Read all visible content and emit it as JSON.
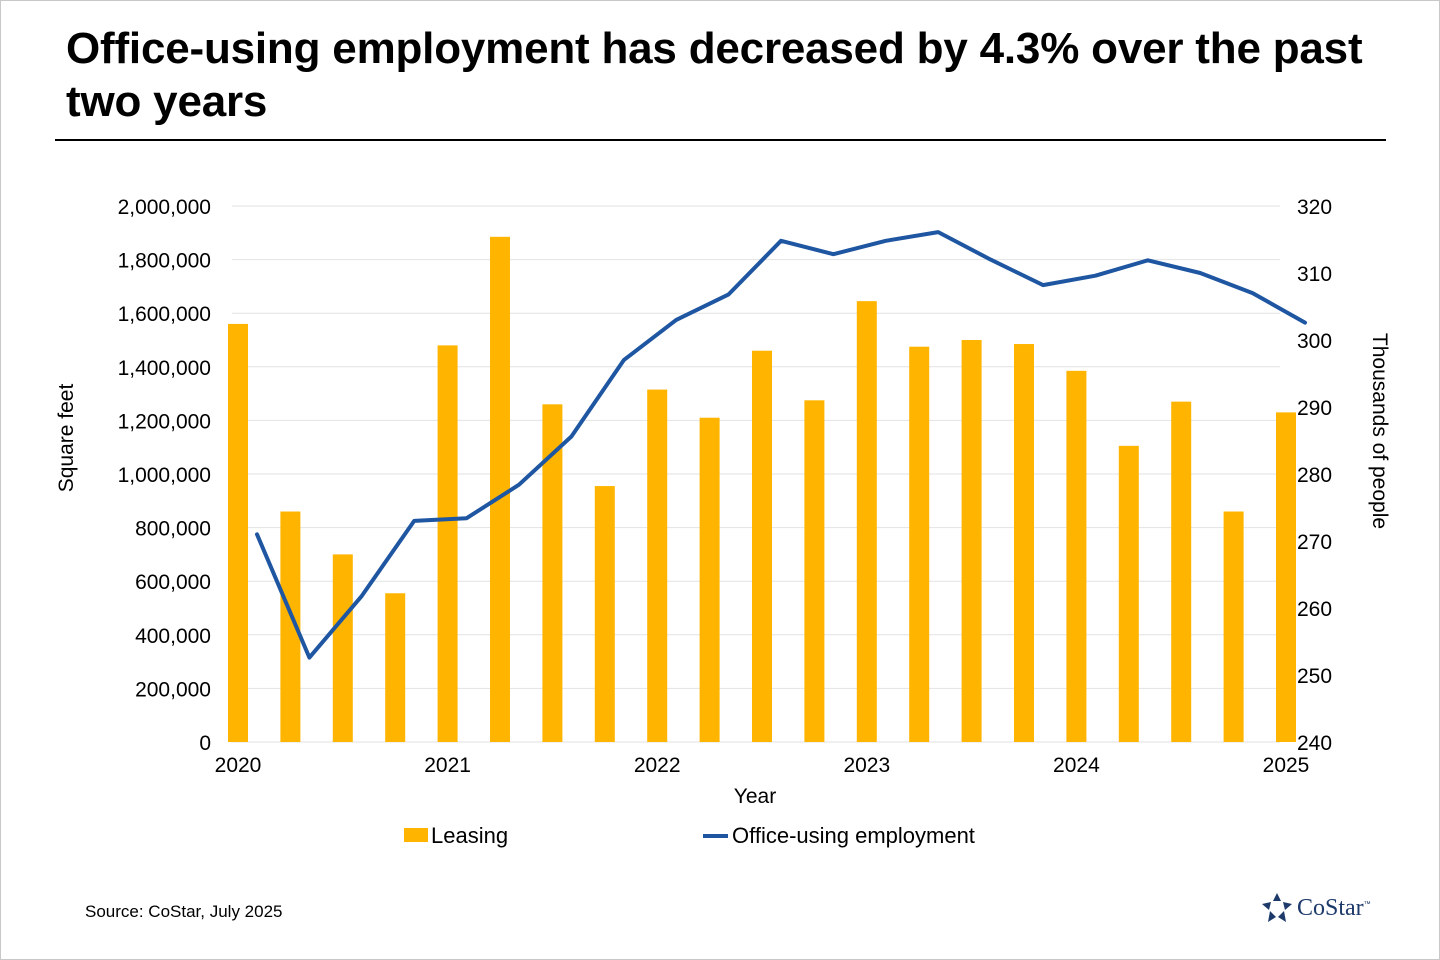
{
  "title": "Office-using employment has decreased by 4.3% over the past two years",
  "source": "Source: CoStar, July 2025",
  "logo": {
    "name": "CoStar",
    "tm": "™",
    "icon": "costar-star-icon"
  },
  "colors": {
    "bar": "#FFB500",
    "line": "#1F56A1",
    "grid": "#E2E2E2",
    "logo": "#1D3A6B"
  },
  "chart_data": {
    "type": "bar",
    "title": "Office-using employment has decreased by 4.3% over the past two years",
    "xlabel": "Year",
    "ylabel": "Square feet",
    "y2label": "Thousands of people",
    "x_ticks": [
      "2020",
      "2021",
      "2022",
      "2023",
      "2024",
      "2025"
    ],
    "ylim": [
      0,
      2000000
    ],
    "y_ticks": [
      "0",
      "200,000",
      "400,000",
      "600,000",
      "800,000",
      "1,000,000",
      "1,200,000",
      "1,400,000",
      "1,600,000",
      "1,800,000",
      "2,000,000"
    ],
    "y2lim": [
      240,
      320
    ],
    "y2_ticks": [
      "240",
      "250",
      "260",
      "270",
      "280",
      "290",
      "300",
      "310",
      "320"
    ],
    "grid": true,
    "legend": "bottom-center",
    "categories": [
      "2020 Q1",
      "2020 Q2",
      "2020 Q3",
      "2020 Q4",
      "2021 Q1",
      "2021 Q2",
      "2021 Q3",
      "2021 Q4",
      "2022 Q1",
      "2022 Q2",
      "2022 Q3",
      "2022 Q4",
      "2023 Q1",
      "2023 Q2",
      "2023 Q3",
      "2023 Q4",
      "2024 Q1",
      "2024 Q2",
      "2024 Q3",
      "2024 Q4",
      "2025 Q1"
    ],
    "series": [
      {
        "name": "Leasing",
        "type": "bar",
        "axis": "left",
        "values": [
          1560000,
          860000,
          700000,
          555000,
          1480000,
          1885000,
          1260000,
          955000,
          1315000,
          1210000,
          1460000,
          1275000,
          1645000,
          1475000,
          1500000,
          1485000,
          1385000,
          1105000,
          1270000,
          860000,
          1230000
        ]
      },
      {
        "name": "Office-using employment",
        "type": "line",
        "axis": "right",
        "values": [
          271.0,
          252.6,
          261.8,
          273.0,
          273.4,
          278.4,
          285.6,
          297.0,
          303.0,
          306.8,
          314.8,
          312.8,
          314.8,
          316.1,
          312.0,
          308.2,
          309.6,
          311.9,
          310.0,
          307.0,
          302.6
        ]
      }
    ]
  }
}
